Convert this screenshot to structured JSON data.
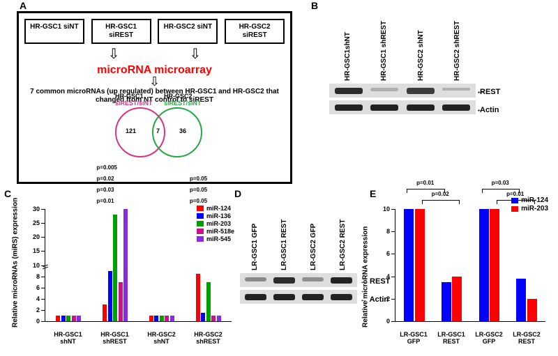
{
  "panelA": {
    "label": "A",
    "boxes": [
      "HR-GSC1 siNT",
      "HR-GSC1 siREST",
      "HR-GSC2 siNT",
      "HR-GSC2 siREST"
    ],
    "center_red": "microRNA microarray",
    "desc": "7 common microRNAs (up regulated) between HR-GSC1 and HR-GSC2 that changed from NT control to siREST",
    "venn": {
      "left_title_line1": "HR-GSC1",
      "left_title_line2": "siREST/siNT",
      "right_title_line1": "HR-GSC2",
      "right_title_line2": "siREST/siNT",
      "left_n": 121,
      "center_n": 7,
      "right_n": 36,
      "left_color": "#d63384",
      "right_color": "#28a745"
    }
  },
  "panelB": {
    "label": "B",
    "lanes": [
      "HR-GSC1shNT",
      "HR-GSC1 shREST",
      "HR-GSC2 shNT",
      "HR-GSC2 shREST"
    ],
    "rows": [
      {
        "name": "REST",
        "intensity": [
          0.85,
          0.1,
          0.75,
          0.08
        ]
      },
      {
        "name": "Actin",
        "intensity": [
          0.9,
          0.9,
          0.9,
          0.9
        ]
      }
    ],
    "band_color": "#1a1a1a",
    "gel_bg": "#dedede"
  },
  "panelC": {
    "label": "C",
    "ylabel": "Relative microRNAs (miRS) expression",
    "ymax": 30,
    "break_at": 10,
    "series": [
      {
        "name": "miR-124",
        "color": "#ff0000"
      },
      {
        "name": "miR-136",
        "color": "#0000ff"
      },
      {
        "name": "miR-203",
        "color": "#00a000"
      },
      {
        "name": "miR-518e",
        "color": "#c71585"
      },
      {
        "name": "miR-545",
        "color": "#8a2be2"
      }
    ],
    "groups": [
      {
        "name": "HR-GSC1 shNT",
        "values": [
          1.0,
          1.0,
          1.0,
          1.0,
          1.0
        ]
      },
      {
        "name": "HR-GSC1 shREST",
        "values": [
          3.0,
          9.0,
          28.0,
          7.0,
          30.0
        ]
      },
      {
        "name": "HR-GSC2 shNT",
        "values": [
          1.0,
          1.0,
          1.0,
          1.0,
          1.0
        ]
      },
      {
        "name": "HR-GSC2 shREST",
        "values": [
          8.5,
          1.5,
          7.0,
          1.0,
          1.0
        ]
      }
    ],
    "pvalues": [
      {
        "group": 1,
        "labels": [
          "p=0.01",
          "p=0.03",
          "p=0.02",
          "p=0.005"
        ]
      },
      {
        "group": 3,
        "labels": [
          "p=0.05",
          "p=0.05",
          "p=0.05"
        ]
      }
    ]
  },
  "panelD": {
    "label": "D",
    "lanes": [
      "LR-GSC1 GFP",
      "LR-GSC1 REST",
      "LR-GSC2 GFP",
      "LR-GSC2 REST"
    ],
    "rows": [
      {
        "name": "REST",
        "intensity": [
          0.3,
          0.85,
          0.28,
          0.9
        ]
      },
      {
        "name": "Actin",
        "intensity": [
          0.9,
          0.9,
          0.9,
          0.9
        ]
      }
    ],
    "band_color": "#1a1a1a",
    "gel_bg": "#dedede"
  },
  "panelE": {
    "label": "E",
    "ylabel": "Relative microRNA expression",
    "ymax": 10,
    "series": [
      {
        "name": "miR-124",
        "color": "#0000ff"
      },
      {
        "name": "miR-203",
        "color": "#ff0000"
      }
    ],
    "groups": [
      {
        "name": "LR-GSC1 GFP",
        "values": [
          10,
          10
        ]
      },
      {
        "name": "LR-GSC1 REST",
        "values": [
          3.5,
          4.0
        ]
      },
      {
        "name": "LR-GSC2 GFP",
        "values": [
          10,
          10
        ]
      },
      {
        "name": "LR-GSC2 REST",
        "values": [
          3.8,
          2.0
        ]
      }
    ],
    "pvalues": [
      {
        "from": 0,
        "to": 1,
        "series": 0,
        "label": "p=0.01"
      },
      {
        "from": 0,
        "to": 1,
        "series": 1,
        "label": "p=0.02"
      },
      {
        "from": 2,
        "to": 3,
        "series": 0,
        "label": "p=0.03"
      },
      {
        "from": 2,
        "to": 3,
        "series": 1,
        "label": "p=0.01"
      }
    ]
  }
}
